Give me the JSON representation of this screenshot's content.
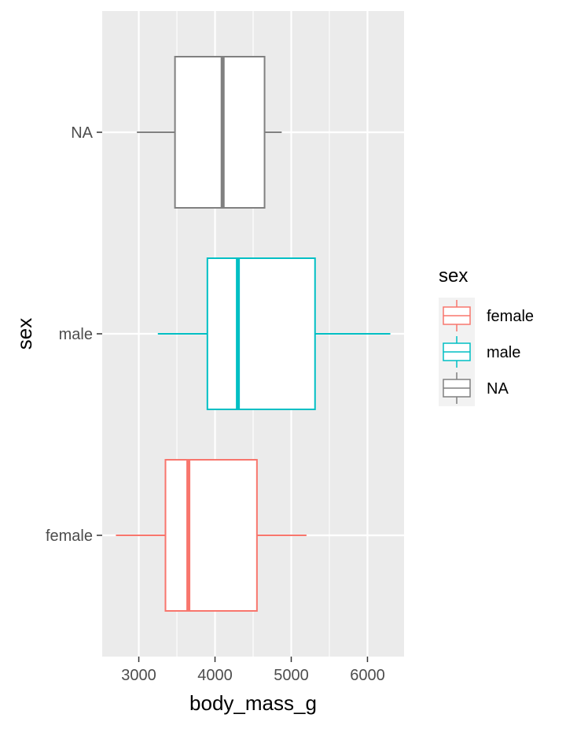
{
  "chart_data": {
    "type": "boxplot",
    "orientation": "horizontal",
    "xlabel": "body_mass_g",
    "ylabel": "sex",
    "xlim": [
      2520,
      6480
    ],
    "x_ticks": [
      3000,
      4000,
      5000,
      6000
    ],
    "x_minor_ticks": [
      3500,
      4500,
      5500
    ],
    "categories": [
      "female",
      "male",
      "NA"
    ],
    "series": [
      {
        "name": "female",
        "color": "#F8766D",
        "whisker_low": 2700,
        "q1": 3350,
        "median": 3650,
        "q3": 4550,
        "whisker_high": 5200
      },
      {
        "name": "male",
        "color": "#00BFC4",
        "whisker_low": 3250,
        "q1": 3900,
        "median": 4300,
        "q3": 5312,
        "whisker_high": 6300
      },
      {
        "name": "NA",
        "color": "#808080",
        "whisker_low": 2975,
        "q1": 3475,
        "median": 4100,
        "q3": 4650,
        "whisker_high": 4875
      }
    ],
    "grid": true,
    "panel_background": "#EBEBEB",
    "legend": {
      "title": "sex",
      "position": "right",
      "entries": [
        "female",
        "male",
        "NA"
      ]
    }
  }
}
